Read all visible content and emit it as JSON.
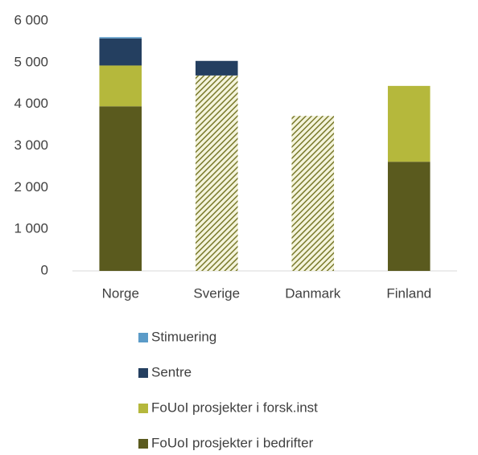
{
  "chart_data": {
    "type": "stacked_bar",
    "categories": [
      "Norge",
      "Sverige",
      "Danmark",
      "Finland"
    ],
    "series": [
      {
        "name": "FoUoI prosjekter i bedrifter",
        "color": "#5a5a1e",
        "values": [
          3950,
          0,
          0,
          2620
        ]
      },
      {
        "name": null,
        "color": "#7a7a2c",
        "pattern": "hatch",
        "values": [
          0,
          4690,
          3720,
          0
        ]
      },
      {
        "name": "FoUoI prosjekter i forsk.inst",
        "color": "#b5b83c",
        "values": [
          980,
          0,
          0,
          1820
        ]
      },
      {
        "name": "Sentre",
        "color": "#243f60",
        "values": [
          650,
          350,
          0,
          0
        ]
      },
      {
        "name": "Stimuering",
        "color": "#5b9bc8",
        "values": [
          30,
          0,
          0,
          0
        ]
      }
    ],
    "ylim": [
      0,
      6000
    ],
    "yticks": [
      0,
      {
        "value": 1000,
        "label": "1 000"
      },
      {
        "value": 2000,
        "label": "2 000"
      },
      {
        "value": 3000,
        "label": "3 000"
      },
      {
        "value": 4000,
        "label": "4 000"
      },
      {
        "value": 5000,
        "label": "5 000"
      },
      {
        "value": 6000,
        "label": "6 000"
      }
    ],
    "grid": false,
    "legend": "bottom"
  }
}
